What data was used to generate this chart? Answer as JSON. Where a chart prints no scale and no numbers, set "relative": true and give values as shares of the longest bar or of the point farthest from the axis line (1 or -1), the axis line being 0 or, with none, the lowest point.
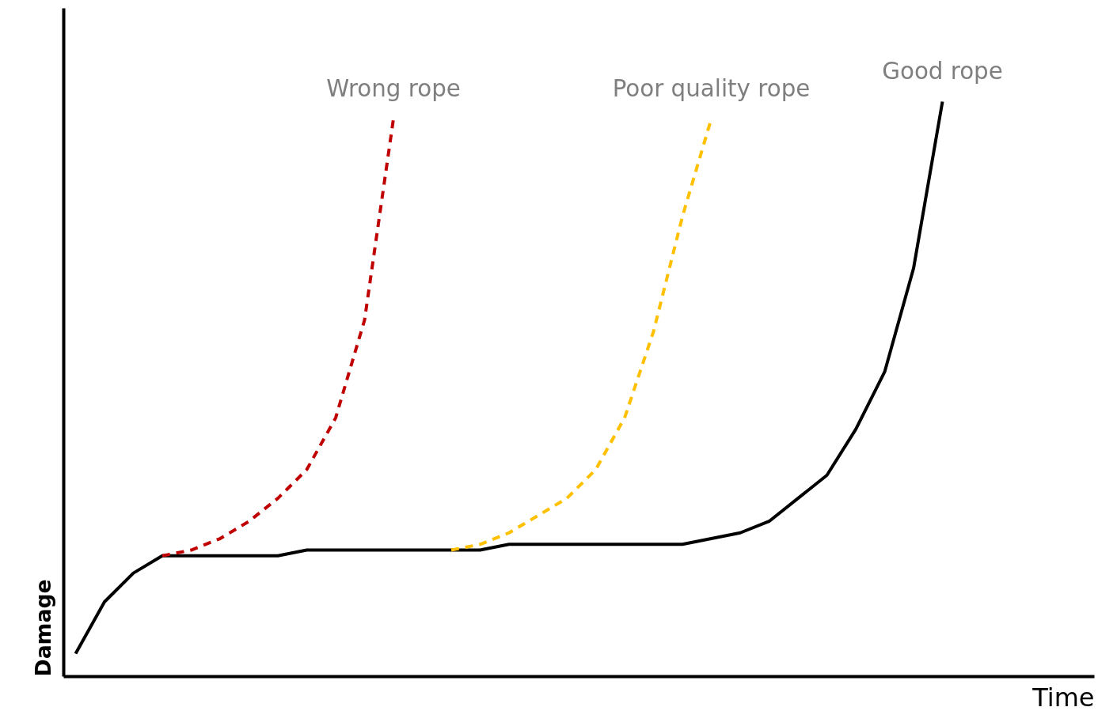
{
  "chart_data": {
    "type": "line",
    "relative": true,
    "xlabel": "Time",
    "ylabel": "Damage",
    "legend": false,
    "grid": false,
    "marker": "none",
    "categories": [
      null,
      null,
      null,
      null,
      null,
      null,
      null,
      null,
      null,
      null,
      null,
      null,
      null,
      null,
      null,
      null,
      null,
      null,
      null,
      null,
      null,
      null,
      null,
      null,
      null,
      null,
      null,
      null,
      null,
      null,
      null
    ],
    "series": [
      {
        "name": "Wrong rope",
        "color": "#c00000",
        "line_style": "dashed",
        "values": [
          null,
          null,
          null,
          0.21,
          0.22,
          0.24,
          0.27,
          0.31,
          0.36,
          0.45,
          0.62,
          0.97,
          null,
          null,
          null,
          null,
          null,
          null,
          null,
          null,
          null,
          null,
          null,
          null,
          null,
          null,
          null,
          null,
          null,
          null,
          null
        ]
      },
      {
        "name": "Poor quality rope",
        "color": "#ffc000",
        "line_style": "dashed",
        "values": [
          null,
          null,
          null,
          null,
          null,
          null,
          null,
          null,
          null,
          null,
          null,
          null,
          null,
          0.22,
          0.23,
          0.25,
          0.28,
          0.31,
          0.36,
          0.45,
          0.6,
          0.8,
          0.97,
          null,
          null,
          null,
          null,
          null,
          null,
          null,
          null
        ]
      },
      {
        "name": "Good rope",
        "color": "#000000",
        "line_style": "solid",
        "values": [
          0.04,
          0.13,
          0.18,
          0.21,
          0.21,
          0.21,
          0.21,
          0.21,
          0.22,
          0.22,
          0.22,
          0.22,
          0.22,
          0.22,
          0.22,
          0.23,
          0.23,
          0.23,
          0.23,
          0.23,
          0.23,
          0.23,
          0.24,
          0.25,
          0.27,
          0.31,
          0.35,
          0.43,
          0.53,
          0.71,
          1.0
        ]
      }
    ]
  }
}
